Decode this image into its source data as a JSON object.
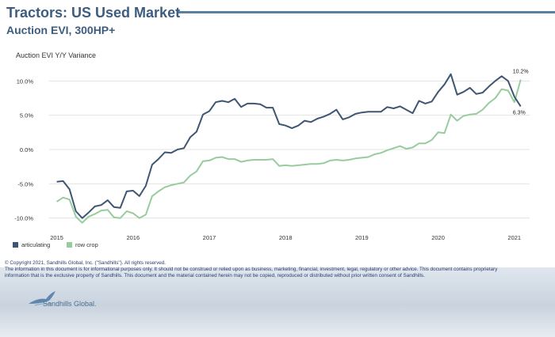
{
  "header": {
    "title": "Tractors:  US Used Market",
    "subtitle": "Auction EVI, 300HP+"
  },
  "colors": {
    "articulating": "#3f5672",
    "row_crop": "#98cc9f",
    "axis_text": "#333333"
  },
  "chart_data": {
    "type": "line",
    "title": "Auction EVI Y/Y Variance",
    "xlabel": "",
    "ylabel": "",
    "xlim": [
      2014.9,
      2021.2
    ],
    "ylim": [
      -12,
      12
    ],
    "y_ticks": [
      10,
      5,
      0,
      -5,
      -10
    ],
    "y_tick_labels": [
      "10.0%",
      "5.0%",
      "0.0%",
      "-5.0%",
      "-10.0%"
    ],
    "x_ticks": [
      2015,
      2016,
      2017,
      2018,
      2019,
      2020,
      2021
    ],
    "x_tick_labels": [
      "2015",
      "2016",
      "2017",
      "2018",
      "2019",
      "2020",
      "2021"
    ],
    "grid": "horizontal",
    "legend": "bottom-left",
    "series": [
      {
        "name": "articulating",
        "x": [
          2015.0,
          2015.083,
          2015.167,
          2015.25,
          2015.333,
          2015.417,
          2015.5,
          2015.583,
          2015.667,
          2015.75,
          2015.833,
          2015.917,
          2016.0,
          2016.083,
          2016.167,
          2016.25,
          2016.333,
          2016.417,
          2016.5,
          2016.583,
          2016.667,
          2016.75,
          2016.833,
          2016.917,
          2017.0,
          2017.083,
          2017.167,
          2017.25,
          2017.333,
          2017.417,
          2017.5,
          2017.583,
          2017.667,
          2017.75,
          2017.833,
          2017.917,
          2018.0,
          2018.083,
          2018.167,
          2018.25,
          2018.333,
          2018.417,
          2018.5,
          2018.583,
          2018.667,
          2018.75,
          2018.833,
          2018.917,
          2019.0,
          2019.083,
          2019.167,
          2019.25,
          2019.333,
          2019.417,
          2019.5,
          2019.583,
          2019.667,
          2019.75,
          2019.833,
          2019.917,
          2020.0,
          2020.083,
          2020.167,
          2020.25,
          2020.333,
          2020.417,
          2020.5,
          2020.583,
          2020.667,
          2020.75,
          2020.833,
          2020.917,
          2021.0,
          2021.083
        ],
        "values": [
          -4.7,
          -4.6,
          -5.8,
          -9.0,
          -10.0,
          -9.2,
          -8.3,
          -8.1,
          -7.4,
          -8.4,
          -8.5,
          -6.1,
          -6.0,
          -6.8,
          -5.3,
          -2.2,
          -1.4,
          -0.4,
          -0.5,
          0.0,
          0.2,
          1.8,
          2.6,
          5.1,
          5.6,
          6.9,
          7.1,
          6.9,
          7.4,
          6.2,
          6.7,
          6.7,
          6.6,
          6.1,
          6.1,
          3.7,
          3.5,
          3.1,
          3.5,
          4.2,
          4.0,
          4.5,
          4.8,
          5.2,
          5.8,
          4.4,
          4.7,
          5.2,
          5.4,
          5.5,
          5.5,
          5.5,
          6.2,
          6.0,
          6.3,
          5.8,
          5.3,
          7.1,
          6.7,
          7.0,
          8.4,
          9.5,
          11.0,
          8.0,
          8.4,
          9.0,
          8.1,
          8.3,
          9.2,
          10.0,
          10.7,
          10.0,
          7.7,
          6.3
        ]
      },
      {
        "name": "row crop",
        "x": [
          2015.0,
          2015.083,
          2015.167,
          2015.25,
          2015.333,
          2015.417,
          2015.5,
          2015.583,
          2015.667,
          2015.75,
          2015.833,
          2015.917,
          2016.0,
          2016.083,
          2016.167,
          2016.25,
          2016.333,
          2016.417,
          2016.5,
          2016.583,
          2016.667,
          2016.75,
          2016.833,
          2016.917,
          2017.0,
          2017.083,
          2017.167,
          2017.25,
          2017.333,
          2017.417,
          2017.5,
          2017.583,
          2017.667,
          2017.75,
          2017.833,
          2017.917,
          2018.0,
          2018.083,
          2018.167,
          2018.25,
          2018.333,
          2018.417,
          2018.5,
          2018.583,
          2018.667,
          2018.75,
          2018.833,
          2018.917,
          2019.0,
          2019.083,
          2019.167,
          2019.25,
          2019.333,
          2019.417,
          2019.5,
          2019.583,
          2019.667,
          2019.75,
          2019.833,
          2019.917,
          2020.0,
          2020.083,
          2020.167,
          2020.25,
          2020.333,
          2020.417,
          2020.5,
          2020.583,
          2020.667,
          2020.75,
          2020.833,
          2020.917,
          2021.0,
          2021.083
        ],
        "values": [
          -7.6,
          -7.0,
          -7.3,
          -9.8,
          -10.7,
          -9.8,
          -9.4,
          -8.9,
          -8.8,
          -9.9,
          -10.0,
          -9.0,
          -9.3,
          -10.0,
          -9.5,
          -6.8,
          -6.1,
          -5.5,
          -5.2,
          -5.0,
          -4.8,
          -3.8,
          -3.2,
          -1.7,
          -1.6,
          -1.2,
          -1.1,
          -1.4,
          -1.4,
          -1.8,
          -1.6,
          -1.5,
          -1.5,
          -1.5,
          -1.4,
          -2.4,
          -2.3,
          -2.4,
          -2.3,
          -2.2,
          -2.1,
          -2.1,
          -2.0,
          -1.6,
          -1.5,
          -1.6,
          -1.5,
          -1.3,
          -1.2,
          -1.1,
          -0.7,
          -0.5,
          -0.1,
          0.2,
          0.5,
          0.1,
          0.3,
          0.9,
          0.9,
          1.4,
          2.5,
          2.4,
          5.1,
          4.2,
          4.9,
          5.1,
          5.2,
          5.8,
          6.8,
          7.5,
          8.8,
          8.6,
          6.9,
          10.2
        ]
      }
    ],
    "annotations": [
      {
        "series": "row crop",
        "text": "10.2%"
      },
      {
        "series": "articulating",
        "text": "6.3%"
      }
    ]
  },
  "footer": {
    "copyright": "© Copyright 2021, Sandhills Global, Inc. (\"Sandhills\"). All rights reserved.",
    "disclaimer_1": "The information in this document is for informational purposes only.  It should not be construed or relied upon as business, marketing, financial, investment, legal, regulatory or other advice. This document contains proprietary",
    "disclaimer_2": "information that is the exclusive property of Sandhills. This document and the material contained herein may not be copied, reproduced or distributed without prior written consent of Sandhills.",
    "logo_text": "Sandhills Global."
  }
}
